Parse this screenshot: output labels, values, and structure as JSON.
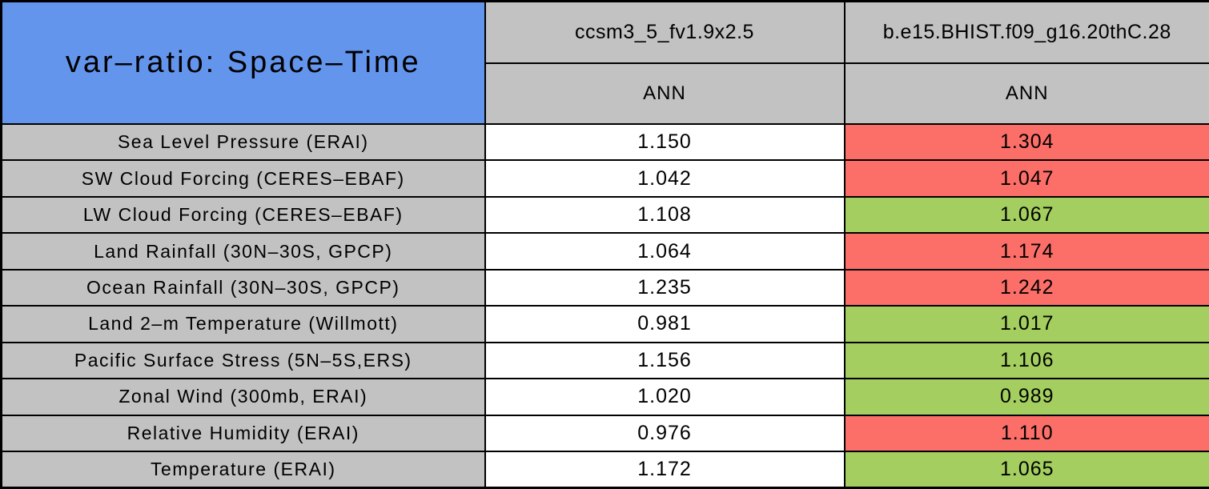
{
  "table": {
    "title": "var–ratio: Space–Time",
    "columns": [
      "ccsm3_5_fv1.9x2.5",
      "b.e15.BHIST.f09_g16.20thC.28"
    ],
    "season_labels": [
      "ANN",
      "ANN"
    ],
    "rows": [
      {
        "label": "Sea Level Pressure (ERAI)",
        "values": [
          "1.150",
          "1.304"
        ],
        "status": "red"
      },
      {
        "label": "SW Cloud Forcing (CERES–EBAF)",
        "values": [
          "1.042",
          "1.047"
        ],
        "status": "red"
      },
      {
        "label": "LW Cloud Forcing (CERES–EBAF)",
        "values": [
          "1.108",
          "1.067"
        ],
        "status": "green"
      },
      {
        "label": "Land Rainfall (30N–30S, GPCP)",
        "values": [
          "1.064",
          "1.174"
        ],
        "status": "red"
      },
      {
        "label": "Ocean Rainfall (30N–30S, GPCP)",
        "values": [
          "1.235",
          "1.242"
        ],
        "status": "red"
      },
      {
        "label": "Land 2–m Temperature (Willmott)",
        "values": [
          "0.981",
          "1.017"
        ],
        "status": "green"
      },
      {
        "label": "Pacific Surface Stress (5N–5S,ERS)",
        "values": [
          "1.156",
          "1.106"
        ],
        "status": "green"
      },
      {
        "label": "Zonal Wind (300mb, ERAI)",
        "values": [
          "1.020",
          "0.989"
        ],
        "status": "green"
      },
      {
        "label": "Relative Humidity (ERAI)",
        "values": [
          "0.976",
          "1.110"
        ],
        "status": "red"
      },
      {
        "label": "Temperature (ERAI)",
        "values": [
          "1.172",
          "1.065"
        ],
        "status": "green"
      }
    ]
  },
  "colors": {
    "title_bg": "#6495ED",
    "header_bg": "#C2C2C2",
    "value_bg": "#FFFFFF",
    "status_red": "#FC6E68",
    "status_green": "#A4CE5F",
    "border": "#000000"
  },
  "chart_data": {
    "type": "table",
    "title": "var-ratio: Space-Time",
    "columns": [
      "ccsm3_5_fv1.9x2.5",
      "b.e15.BHIST.f09_g16.20thC.28"
    ],
    "season": "ANN",
    "rows": [
      {
        "variable": "Sea Level Pressure (ERAI)",
        "values": [
          1.15,
          1.304
        ],
        "cell_colors": [
          "white",
          "red"
        ]
      },
      {
        "variable": "SW Cloud Forcing (CERES-EBAF)",
        "values": [
          1.042,
          1.047
        ],
        "cell_colors": [
          "white",
          "red"
        ]
      },
      {
        "variable": "LW Cloud Forcing (CERES-EBAF)",
        "values": [
          1.108,
          1.067
        ],
        "cell_colors": [
          "white",
          "green"
        ]
      },
      {
        "variable": "Land Rainfall (30N-30S, GPCP)",
        "values": [
          1.064,
          1.174
        ],
        "cell_colors": [
          "white",
          "red"
        ]
      },
      {
        "variable": "Ocean Rainfall (30N-30S, GPCP)",
        "values": [
          1.235,
          1.242
        ],
        "cell_colors": [
          "white",
          "red"
        ]
      },
      {
        "variable": "Land 2-m Temperature (Willmott)",
        "values": [
          0.981,
          1.017
        ],
        "cell_colors": [
          "white",
          "green"
        ]
      },
      {
        "variable": "Pacific Surface Stress (5N-5S,ERS)",
        "values": [
          1.156,
          1.106
        ],
        "cell_colors": [
          "white",
          "green"
        ]
      },
      {
        "variable": "Zonal Wind (300mb, ERAI)",
        "values": [
          1.02,
          0.989
        ],
        "cell_colors": [
          "white",
          "green"
        ]
      },
      {
        "variable": "Relative Humidity (ERAI)",
        "values": [
          0.976,
          1.11
        ],
        "cell_colors": [
          "white",
          "red"
        ]
      },
      {
        "variable": "Temperature (ERAI)",
        "values": [
          1.172,
          1.065
        ],
        "cell_colors": [
          "white",
          "green"
        ]
      }
    ]
  }
}
